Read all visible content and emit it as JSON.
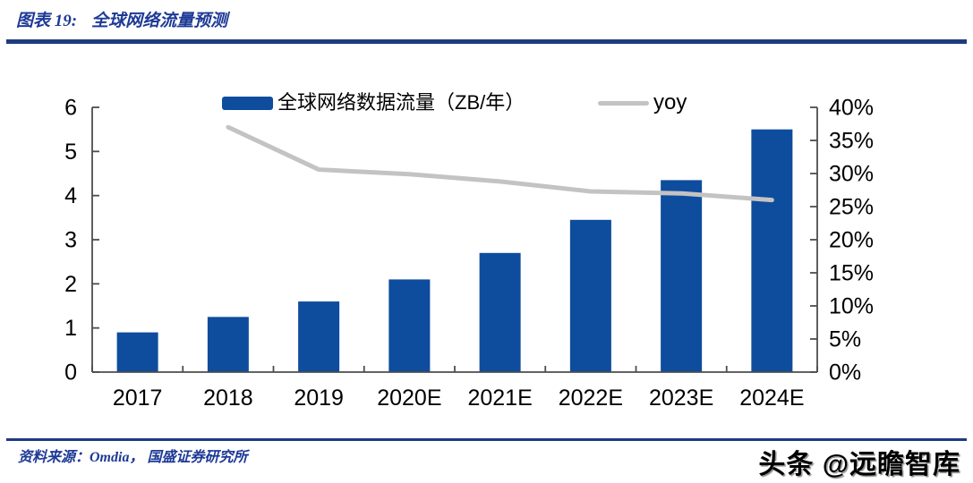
{
  "header": {
    "label": "图表 19:",
    "title": "全球网络流量预测"
  },
  "legend": {
    "bars": "全球网络数据流量（ZB/年）",
    "line": "yoy"
  },
  "footer": {
    "source": "资料来源：Omdia， 国盛证券研究所",
    "watermark": "头条 @远瞻智库"
  },
  "colors": {
    "bar_blue": "#0E4C9E",
    "yoy_gray": "#C3C3C3",
    "axis_gray": "#4D4D4D",
    "label_black": "#000000",
    "divider_navy": "#1E3B80",
    "heading_blue": "#1E3A96"
  },
  "chart_data": {
    "type": "bar",
    "subtype": "bar+line-combo",
    "categories": [
      "2017",
      "2018",
      "2019",
      "2020E",
      "2021E",
      "2022E",
      "2023E",
      "2024E"
    ],
    "series": [
      {
        "name": "全球网络数据流量（ZB/年）",
        "type": "bar",
        "axis": "left",
        "values": [
          0.9,
          1.25,
          1.6,
          2.1,
          2.7,
          3.45,
          4.35,
          5.5
        ]
      },
      {
        "name": "yoy",
        "type": "line",
        "axis": "right",
        "unit": "%",
        "values": [
          null,
          37.0,
          30.6,
          29.9,
          28.8,
          27.3,
          27.0,
          26.0
        ]
      }
    ],
    "left_axis": {
      "min": 0,
      "max": 6,
      "step": 1,
      "tick_labels": [
        "0",
        "1",
        "2",
        "3",
        "4",
        "5",
        "6"
      ]
    },
    "right_axis": {
      "min": 0,
      "max": 40,
      "step": 5,
      "format": "percent",
      "tick_labels": [
        "0%",
        "5%",
        "10%",
        "15%",
        "20%",
        "25%",
        "30%",
        "35%",
        "40%"
      ]
    },
    "grid": false,
    "legend_position": "top"
  }
}
